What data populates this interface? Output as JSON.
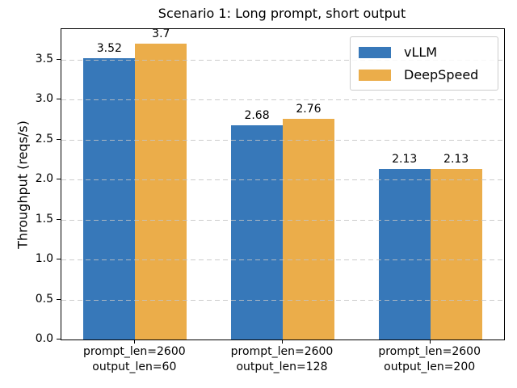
{
  "chart_data": {
    "type": "bar",
    "title": "Scenario 1: Long prompt, short output",
    "xlabel": "",
    "ylabel": "Throughput (reqs/s)",
    "categories": [
      [
        "prompt_len=2600",
        "output_len=60"
      ],
      [
        "prompt_len=2600",
        "output_len=128"
      ],
      [
        "prompt_len=2600",
        "output_len=200"
      ]
    ],
    "series": [
      {
        "name": "vLLM",
        "color": "#3778b9",
        "values": [
          3.52,
          2.68,
          2.13
        ],
        "labels": [
          "3.52",
          "2.68",
          "2.13"
        ]
      },
      {
        "name": "DeepSpeed",
        "color": "#ebad4a",
        "values": [
          3.7,
          2.76,
          2.13
        ],
        "labels": [
          "3.7",
          "2.76",
          "2.13"
        ]
      }
    ],
    "yticks": [
      "0.0",
      "0.5",
      "1.0",
      "1.5",
      "2.0",
      "2.5",
      "3.0",
      "3.5"
    ],
    "ylim": [
      0,
      3.885
    ],
    "bar_width_fraction": 0.35,
    "grid": "dashed-horizontal-above-bars",
    "grid_color": "#c3c3c3",
    "legend_position": "upper right",
    "background": "#ffffff",
    "spine_color": "#000000"
  }
}
